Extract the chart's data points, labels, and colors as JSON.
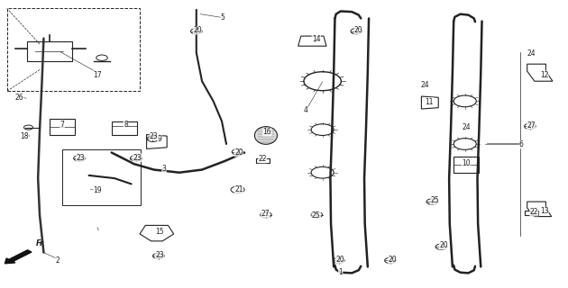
{
  "bg_color": "#ffffff",
  "line_color": "#222222",
  "fig_width": 6.3,
  "fig_height": 3.2,
  "dpi": 100
}
